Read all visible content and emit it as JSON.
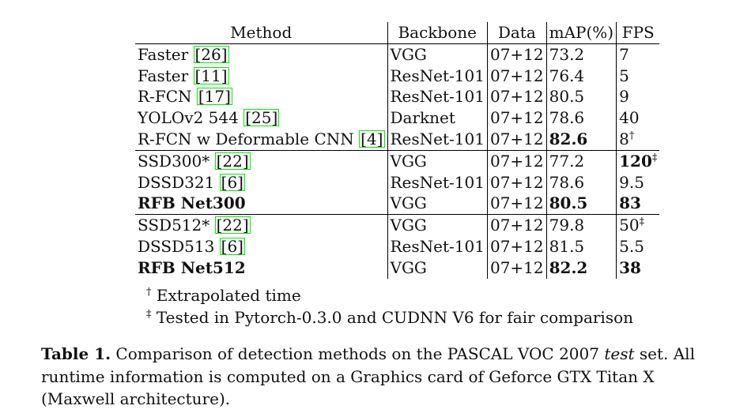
{
  "table": {
    "headers": {
      "method": "Method",
      "backbone": "Backbone",
      "data": "Data",
      "map": "mAP(%)",
      "fps": "FPS"
    },
    "groups": [
      {
        "rows": [
          {
            "method": "Faster ",
            "cite": "[26]",
            "backbone": "VGG",
            "data": "07+12",
            "map": "73.2",
            "fps": "7",
            "fps_mark": ""
          },
          {
            "method": "Faster ",
            "cite": "[11]",
            "backbone": "ResNet-101",
            "data": "07+12",
            "map": "76.4",
            "fps": "5",
            "fps_mark": ""
          },
          {
            "method": "R-FCN ",
            "cite": "[17]",
            "backbone": "ResNet-101",
            "data": "07+12",
            "map": "80.5",
            "fps": "9",
            "fps_mark": ""
          },
          {
            "method": "YOLOv2 544 ",
            "cite": "[25]",
            "backbone": "Darknet",
            "data": "07+12",
            "map": "78.6",
            "fps": "40",
            "fps_mark": ""
          },
          {
            "method": "R-FCN w Deformable CNN ",
            "cite": "[4]",
            "backbone": "ResNet-101",
            "data": "07+12",
            "map": "82.6",
            "map_bold": true,
            "fps": "8",
            "fps_mark": "†"
          }
        ]
      },
      {
        "rows": [
          {
            "method": "SSD300* ",
            "cite": "[22]",
            "backbone": "VGG",
            "data": "07+12",
            "map": "77.2",
            "fps": "120",
            "fps_bold": true,
            "fps_mark": "‡"
          },
          {
            "method": "DSSD321 ",
            "cite": "[6]",
            "backbone": "ResNet-101",
            "data": "07+12",
            "map": "78.6",
            "fps": "9.5",
            "fps_mark": ""
          },
          {
            "method": "RFB Net300",
            "method_bold": true,
            "cite": "",
            "backbone": "VGG",
            "data": "07+12",
            "map": "80.5",
            "map_bold": true,
            "fps": "83",
            "fps_bold": true,
            "fps_mark": ""
          }
        ]
      },
      {
        "rows": [
          {
            "method": "SSD512* ",
            "cite": "[22]",
            "backbone": "VGG",
            "data": "07+12",
            "map": "79.8",
            "fps": "50",
            "fps_mark": "‡"
          },
          {
            "method": "DSSD513 ",
            "cite": "[6]",
            "backbone": "ResNet-101",
            "data": "07+12",
            "map": "81.5",
            "fps": "5.5",
            "fps_mark": ""
          },
          {
            "method": "RFB Net512",
            "method_bold": true,
            "cite": "",
            "backbone": "VGG",
            "data": "07+12",
            "map": "82.2",
            "map_bold": true,
            "fps": "38",
            "fps_bold": true,
            "fps_mark": ""
          }
        ]
      }
    ]
  },
  "notes": [
    {
      "mark": "†",
      "text": " Extrapolated time"
    },
    {
      "mark": "‡",
      "text": " Tested in Pytorch-0.3.0 and CUDNN V6 for fair comparison"
    }
  ],
  "caption": {
    "label": "Table 1.",
    "text_before": " Comparison of detection methods on the PASCAL VOC 2007 ",
    "emphasis": "test",
    "text_after": " set. All runtime information is computed on a Graphics card of Geforce GTX Titan X (Maxwell architecture)."
  },
  "colors": {
    "citation_box": "#00ee00",
    "text": "#111111"
  }
}
